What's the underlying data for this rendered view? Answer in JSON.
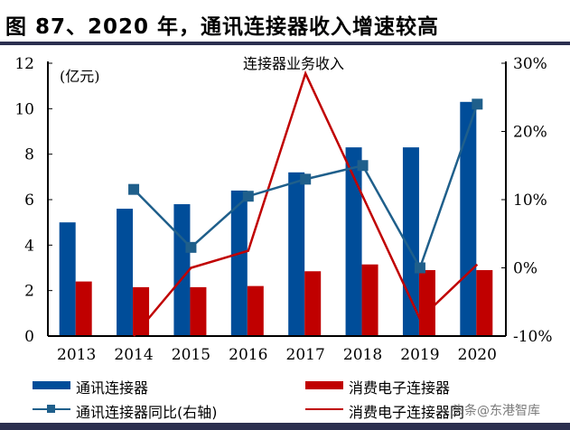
{
  "title": "图 87、2020 年，通讯连接器收入增速较高",
  "chart_data": {
    "type": "bar",
    "title": "连接器业务收入",
    "ylabel": "(亿元)",
    "categories": [
      "2013",
      "2014",
      "2015",
      "2016",
      "2017",
      "2018",
      "2019",
      "2020"
    ],
    "ylim": [
      0,
      12
    ],
    "yticks": [
      "0",
      "2",
      "4",
      "6",
      "8",
      "10",
      "12"
    ],
    "y2lim": [
      -10,
      30
    ],
    "y2ticks": [
      "-10%",
      "0%",
      "10%",
      "20%",
      "30%"
    ],
    "grid": false,
    "legend_position": "bottom",
    "series": [
      {
        "name": "通讯连接器",
        "type": "bar",
        "axis": "left",
        "color": "#004d99",
        "values": [
          5.0,
          5.6,
          5.8,
          6.4,
          7.2,
          8.3,
          8.3,
          10.3
        ]
      },
      {
        "name": "消费电子连接器",
        "type": "bar",
        "axis": "left",
        "color": "#c00000",
        "values": [
          2.4,
          2.15,
          2.15,
          2.2,
          2.85,
          3.15,
          2.9,
          2.9
        ]
      },
      {
        "name": "通讯连接器同比(右轴)",
        "type": "line",
        "axis": "right",
        "color": "#1f5f8b",
        "marker": "square",
        "values": [
          null,
          11.5,
          3.0,
          10.5,
          13.0,
          15.0,
          0.0,
          24.0
        ]
      },
      {
        "name": "消费电子连接器同比(右轴)",
        "type": "line",
        "axis": "right",
        "color": "#c00000",
        "values": [
          null,
          -10.0,
          0.0,
          2.5,
          28.5,
          10.5,
          -7.5,
          0.5
        ]
      }
    ]
  },
  "watermark": "头条@东港智库"
}
